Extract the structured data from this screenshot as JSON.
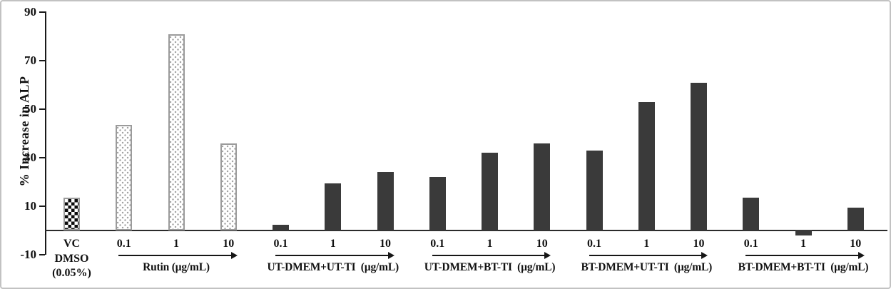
{
  "figure": {
    "description": "Bar chart of % Increase in ALP for vehicle control, Rutin standard and conditioned-media treatments",
    "background_color": "#ffffff",
    "frame_color": "#c2c2c2"
  },
  "colors": {
    "solid_bar": "#3a3a3a",
    "axis": "#1a1a1a",
    "pattern_border": "#9b9b9b",
    "stipple_dot": "#a3a3a3",
    "checker_black": "#0c0c0c",
    "text": "#111111"
  },
  "chart_data": {
    "type": "bar",
    "title": "",
    "xlabel": "",
    "ylabel": "% Increase in ALP",
    "ylim": [
      -10,
      90
    ],
    "yticks": [
      90,
      70,
      50,
      30,
      10,
      -10
    ],
    "grid": false,
    "legend": false,
    "groups": [
      {
        "label_lines": [
          "VC",
          "DMSO",
          "(0.05%)"
        ],
        "arrow": false,
        "bars": [
          {
            "x_label": "",
            "value": 13.5,
            "style": "checker"
          }
        ]
      },
      {
        "label": "Rutin (µg/mL)",
        "arrow": true,
        "bars": [
          {
            "x_label": "0.1",
            "value": 43.5,
            "style": "stipple"
          },
          {
            "x_label": "1",
            "value": 81,
            "style": "stipple"
          },
          {
            "x_label": "10",
            "value": 36,
            "style": "stipple"
          }
        ]
      },
      {
        "label": "UT-DMEM+UT-TI  (µg/mL)",
        "arrow": true,
        "bars": [
          {
            "x_label": "0.1",
            "value": 2.5,
            "style": "solid"
          },
          {
            "x_label": "1",
            "value": 19.5,
            "style": "solid"
          },
          {
            "x_label": "10",
            "value": 24,
            "style": "solid"
          }
        ]
      },
      {
        "label": "UT-DMEM+BT-TI  (µg/mL)",
        "arrow": true,
        "bars": [
          {
            "x_label": "0.1",
            "value": 22,
            "style": "solid"
          },
          {
            "x_label": "1",
            "value": 32,
            "style": "solid"
          },
          {
            "x_label": "10",
            "value": 36,
            "style": "solid"
          }
        ]
      },
      {
        "label": "BT-DMEM+UT-TI  (µg/mL)",
        "arrow": true,
        "bars": [
          {
            "x_label": "0.1",
            "value": 33,
            "style": "solid"
          },
          {
            "x_label": "1",
            "value": 53,
            "style": "solid"
          },
          {
            "x_label": "10",
            "value": 61,
            "style": "solid"
          }
        ]
      },
      {
        "label": "BT-DMEM+BT-TI  (µg/mL)",
        "arrow": true,
        "bars": [
          {
            "x_label": "0.1",
            "value": 13.5,
            "style": "solid"
          },
          {
            "x_label": "1",
            "value": -1.5,
            "style": "solid"
          },
          {
            "x_label": "10",
            "value": 9.5,
            "style": "solid"
          }
        ]
      }
    ]
  }
}
